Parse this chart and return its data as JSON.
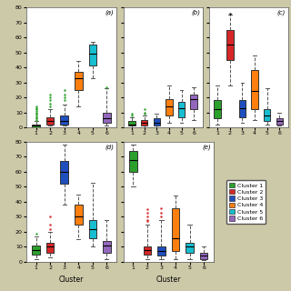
{
  "background_color": "#ccc9a8",
  "xlabel": "Cluster",
  "cluster_labels": [
    "1",
    "2",
    "3",
    "4",
    "5",
    "6"
  ],
  "cluster_colors": [
    "#2ca02c",
    "#d62728",
    "#1f4fbd",
    "#ff7f0e",
    "#17becf",
    "#9467bd"
  ],
  "legend_labels": [
    "Cluster 1",
    "Cluster 2",
    "Cluster 3",
    "Cluster 4",
    "Cluster 5",
    "Cluster 6"
  ],
  "subplots": {
    "a": {
      "label": "(a)",
      "ylim": [
        0,
        80
      ],
      "yticks": [
        0,
        10,
        20,
        30,
        40,
        50,
        60,
        70,
        80
      ],
      "boxes": [
        {
          "med": 1,
          "q1": 0,
          "q3": 2,
          "whislo": 0,
          "whishi": 4,
          "fliers": [
            5,
            6,
            7,
            8,
            9,
            10,
            11,
            12,
            13,
            14
          ]
        },
        {
          "med": 4,
          "q1": 2,
          "q3": 7,
          "whislo": 1,
          "whishi": 12,
          "fliers": [
            14,
            16,
            18,
            20,
            22
          ]
        },
        {
          "med": 4,
          "q1": 2,
          "q3": 8,
          "whislo": 1,
          "whishi": 15,
          "fliers": [
            18,
            20,
            22,
            25
          ]
        },
        {
          "med": 33,
          "q1": 25,
          "q3": 37,
          "whislo": 14,
          "whishi": 44,
          "fliers": []
        },
        {
          "med": 49,
          "q1": 41,
          "q3": 55,
          "whislo": 33,
          "whishi": 57,
          "fliers": []
        },
        {
          "med": 6,
          "q1": 3,
          "q3": 10,
          "whislo": 1,
          "whishi": 26,
          "fliers": [
            27
          ]
        }
      ]
    },
    "b": {
      "label": "(b)",
      "ylim": [
        0,
        80
      ],
      "yticks": [
        0,
        10,
        20,
        30,
        40,
        50,
        60,
        70,
        80
      ],
      "boxes": [
        {
          "med": 2,
          "q1": 1,
          "q3": 4,
          "whislo": 0,
          "whishi": 7,
          "fliers": [
            8,
            9
          ]
        },
        {
          "med": 3,
          "q1": 1,
          "q3": 5,
          "whislo": 0,
          "whishi": 8,
          "fliers": [
            9,
            10,
            12
          ]
        },
        {
          "med": 3,
          "q1": 1,
          "q3": 6,
          "whislo": 0,
          "whishi": 9,
          "fliers": []
        },
        {
          "med": 14,
          "q1": 8,
          "q3": 19,
          "whislo": 3,
          "whishi": 28,
          "fliers": []
        },
        {
          "med": 13,
          "q1": 7,
          "q3": 17,
          "whislo": 3,
          "whishi": 25,
          "fliers": []
        },
        {
          "med": 19,
          "q1": 12,
          "q3": 22,
          "whislo": 5,
          "whishi": 27,
          "fliers": []
        }
      ]
    },
    "c": {
      "label": "(c)",
      "ylim": [
        0,
        80
      ],
      "yticks": [
        0,
        10,
        20,
        30,
        40,
        50,
        60,
        70,
        80
      ],
      "boxes": [
        {
          "med": 12,
          "q1": 6,
          "q3": 18,
          "whislo": 2,
          "whishi": 28,
          "fliers": []
        },
        {
          "med": 55,
          "q1": 45,
          "q3": 65,
          "whislo": 28,
          "whishi": 75,
          "fliers": [
            76
          ]
        },
        {
          "med": 13,
          "q1": 7,
          "q3": 18,
          "whislo": 3,
          "whishi": 30,
          "fliers": []
        },
        {
          "med": 24,
          "q1": 12,
          "q3": 38,
          "whislo": 5,
          "whishi": 48,
          "fliers": []
        },
        {
          "med": 8,
          "q1": 4,
          "q3": 12,
          "whislo": 2,
          "whishi": 26,
          "fliers": []
        },
        {
          "med": 4,
          "q1": 2,
          "q3": 6,
          "whislo": 1,
          "whishi": 10,
          "fliers": []
        }
      ]
    },
    "d": {
      "label": "(d)",
      "ylim": [
        0,
        80
      ],
      "yticks": [
        0,
        10,
        20,
        30,
        40,
        50,
        60,
        70,
        80
      ],
      "boxes": [
        {
          "med": 8,
          "q1": 5,
          "q3": 11,
          "whislo": 2,
          "whishi": 17,
          "fliers": [
            19
          ]
        },
        {
          "med": 10,
          "q1": 6,
          "q3": 13,
          "whislo": 3,
          "whishi": 20,
          "fliers": [
            22,
            25,
            30
          ]
        },
        {
          "med": 60,
          "q1": 52,
          "q3": 67,
          "whislo": 38,
          "whishi": 78,
          "fliers": []
        },
        {
          "med": 30,
          "q1": 25,
          "q3": 38,
          "whislo": 15,
          "whishi": 45,
          "fliers": []
        },
        {
          "med": 22,
          "q1": 16,
          "q3": 28,
          "whislo": 10,
          "whishi": 53,
          "fliers": []
        },
        {
          "med": 11,
          "q1": 6,
          "q3": 14,
          "whislo": 2,
          "whishi": 28,
          "fliers": []
        }
      ]
    },
    "e": {
      "label": "(e)",
      "ylim": [
        0,
        80
      ],
      "yticks": [
        0,
        10,
        20,
        30,
        40,
        50,
        60,
        70,
        80
      ],
      "boxes": [
        {
          "med": 68,
          "q1": 60,
          "q3": 74,
          "whislo": 50,
          "whishi": 78,
          "fliers": []
        },
        {
          "med": 8,
          "q1": 5,
          "q3": 10,
          "whislo": 2,
          "whishi": 25,
          "fliers": [
            27,
            28,
            30,
            33,
            35
          ]
        },
        {
          "med": 7,
          "q1": 4,
          "q3": 10,
          "whislo": 2,
          "whishi": 28,
          "fliers": [
            30,
            33,
            36
          ]
        },
        {
          "med": 16,
          "q1": 7,
          "q3": 36,
          "whislo": 2,
          "whishi": 44,
          "fliers": []
        },
        {
          "med": 10,
          "q1": 6,
          "q3": 13,
          "whislo": 2,
          "whishi": 25,
          "fliers": []
        },
        {
          "med": 4,
          "q1": 2,
          "q3": 6,
          "whislo": 1,
          "whishi": 10,
          "fliers": []
        }
      ]
    }
  }
}
